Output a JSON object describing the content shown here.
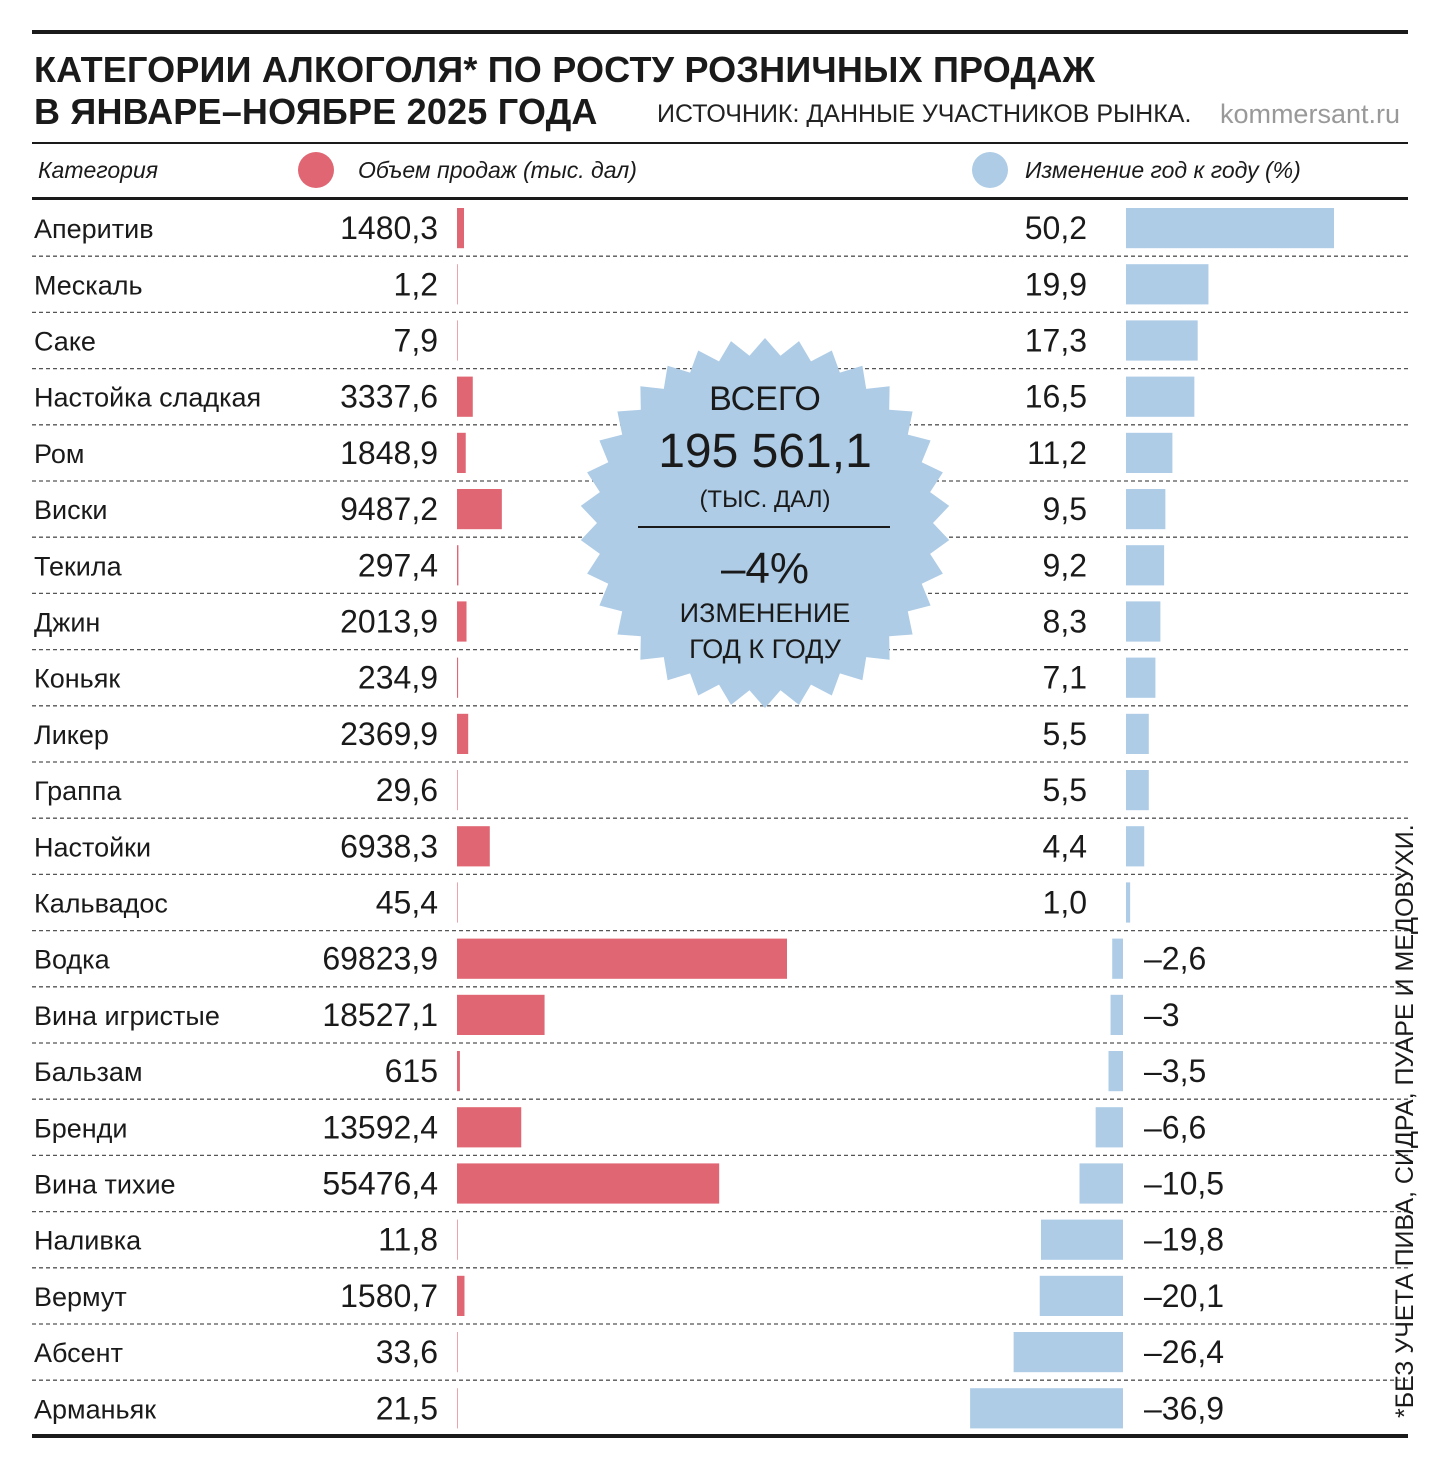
{
  "header": {
    "title_line1": "КАТЕГОРИИ АЛКОГОЛЯ* ПО РОСТУ РОЗНИЧНЫХ ПРОДАЖ",
    "title_line2": "В ЯНВАРЕ–НОЯБРЕ 2025 ГОДА",
    "source": "ИСТОЧНИК: ДАННЫЕ УЧАСТНИКОВ РЫНКА.",
    "site": "kommersant.ru"
  },
  "columns": {
    "category": "Категория",
    "volume": "Объем продаж (тыс. дал)",
    "change": "Изменение год к году (%)"
  },
  "colors": {
    "volume": "#e06673",
    "change": "#aecce6",
    "text": "#1a1a1a"
  },
  "badge": {
    "total_label": "ВСЕГО",
    "total_value": "195 561,1",
    "total_unit": "(ТЫС. ДАЛ)",
    "change_value": "–4%",
    "change_label_line1": "ИЗМЕНЕНИЕ",
    "change_label_line2": "ГОД К ГОДУ"
  },
  "footnote": "*БЕЗ УЧЕТА ПИВА, СИДРА, ПУАРЕ И МЕДОВУХИ.",
  "chart_data": {
    "type": "bar",
    "title": "Категории алкоголя по росту розничных продаж в январе–ноябре 2025 года",
    "categories": [
      "Аперитив",
      "Мескаль",
      "Саке",
      "Настойка сладкая",
      "Ром",
      "Виски",
      "Текила",
      "Джин",
      "Коньяк",
      "Ликер",
      "Граппа",
      "Настойки",
      "Кальвадос",
      "Водка",
      "Вина игристые",
      "Бальзам",
      "Бренди",
      "Вина тихие",
      "Наливка",
      "Вермут",
      "Абсент",
      "Арманьяк"
    ],
    "series": [
      {
        "name": "Объем продаж (тыс. дал)",
        "values": [
          1480.3,
          1.2,
          7.9,
          3337.6,
          1848.9,
          9487.2,
          297.4,
          2013.9,
          234.9,
          2369.9,
          29.6,
          6938.3,
          45.4,
          69823.9,
          18527.1,
          615,
          13592.4,
          55476.4,
          11.8,
          1580.7,
          33.6,
          21.5
        ],
        "labels": [
          "1480,3",
          "1,2",
          "7,9",
          "3337,6",
          "1848,9",
          "9487,2",
          "297,4",
          "2013,9",
          "234,9",
          "2369,9",
          "29,6",
          "6938,3",
          "45,4",
          "69823,9",
          "18527,1",
          "615",
          "13592,4",
          "55476,4",
          "11,8",
          "1580,7",
          "33,6",
          "21,5"
        ]
      },
      {
        "name": "Изменение год к году (%)",
        "values": [
          50.2,
          19.9,
          17.3,
          16.5,
          11.2,
          9.5,
          9.2,
          8.3,
          7.1,
          5.5,
          5.5,
          4.4,
          1.0,
          -2.6,
          -3,
          -3.5,
          -6.6,
          -10.5,
          -19.8,
          -20.1,
          -26.4,
          -36.9
        ],
        "labels": [
          "50,2",
          "19,9",
          "17,3",
          "16,5",
          "11,2",
          "9,5",
          "9,2",
          "8,3",
          "7,1",
          "5,5",
          "5,5",
          "4,4",
          "1,0",
          "–2,6",
          "–3",
          "–3,5",
          "–6,6",
          "–10,5",
          "–19,8",
          "–20,1",
          "–26,4",
          "–36,9"
        ]
      }
    ],
    "volume_range": [
      0,
      69823.9
    ],
    "change_range": [
      -36.9,
      50.2
    ]
  }
}
